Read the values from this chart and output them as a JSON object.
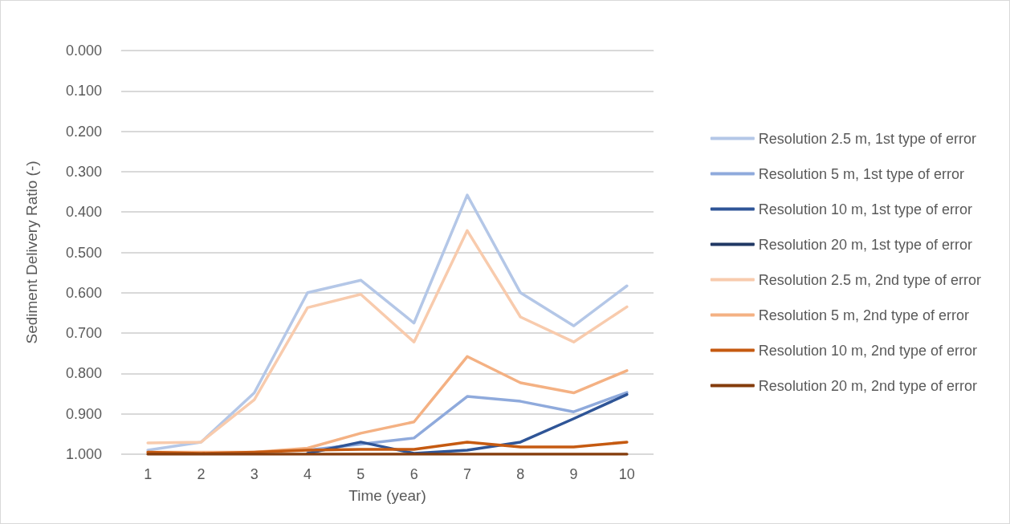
{
  "chart_data": {
    "type": "line",
    "xlabel": "Time (year)",
    "ylabel": "Sediment Delivery Ratio (-)",
    "categories": [
      "1",
      "2",
      "3",
      "4",
      "5",
      "6",
      "7",
      "8",
      "9",
      "10"
    ],
    "ylim": [
      1.0,
      0.0
    ],
    "yticks": [
      {
        "value": 0,
        "label": "0.000"
      },
      {
        "value": 0.1,
        "label": "0.100"
      },
      {
        "value": 0.2,
        "label": "0.200"
      },
      {
        "value": 0.3,
        "label": "0.300"
      },
      {
        "value": 0.4,
        "label": "0.400"
      },
      {
        "value": 0.5,
        "label": "0.500"
      },
      {
        "value": 0.6,
        "label": "0.600"
      },
      {
        "value": 0.7,
        "label": "0.700"
      },
      {
        "value": 0.8,
        "label": "0.800"
      },
      {
        "value": 0.9,
        "label": "0.900"
      },
      {
        "value": 1.0,
        "label": "1.000"
      }
    ],
    "grid": "y",
    "legend": "right",
    "marker": "none",
    "line_style": "solid",
    "series": [
      {
        "name": "Resolution 2.5 m, 1st type of error",
        "color": "#b4c7e7",
        "values": [
          0.99,
          0.97,
          0.848,
          0.6,
          0.569,
          0.675,
          0.358,
          0.6,
          0.682,
          0.583
        ]
      },
      {
        "name": "Resolution 5 m, 1st type of error",
        "color": "#8faadc",
        "values": [
          null,
          null,
          null,
          0.99,
          0.975,
          0.96,
          0.857,
          0.869,
          0.895,
          0.847
        ]
      },
      {
        "name": "Resolution 10 m, 1st type of error",
        "color": "#2f5597",
        "values": [
          null,
          null,
          null,
          0.998,
          0.97,
          0.998,
          0.99,
          0.97,
          0.912,
          0.852
        ]
      },
      {
        "name": "Resolution 20 m, 1st type of error",
        "color": "#203864",
        "values": [
          null,
          null,
          null,
          null,
          null,
          null,
          null,
          null,
          null,
          null
        ]
      },
      {
        "name": "Resolution 2.5 m, 2nd type of error",
        "color": "#f8cbad",
        "values": [
          0.972,
          0.97,
          0.865,
          0.637,
          0.604,
          0.722,
          0.446,
          0.66,
          0.722,
          0.635
        ]
      },
      {
        "name": "Resolution 5 m, 2nd type of error",
        "color": "#f4b183",
        "values": [
          0.995,
          0.995,
          0.995,
          0.985,
          0.948,
          0.92,
          0.758,
          0.823,
          0.848,
          0.793
        ]
      },
      {
        "name": "Resolution 10 m, 2nd type of error",
        "color": "#c55a11",
        "values": [
          0.995,
          0.998,
          0.995,
          0.99,
          0.988,
          0.988,
          0.97,
          0.982,
          0.982,
          0.97
        ]
      },
      {
        "name": "Resolution 20 m, 2nd type of error",
        "color": "#843c0c",
        "values": [
          1.0,
          1.0,
          1.0,
          1.0,
          1.0,
          1.0,
          1.0,
          1.0,
          1.0,
          1.0
        ]
      }
    ]
  }
}
